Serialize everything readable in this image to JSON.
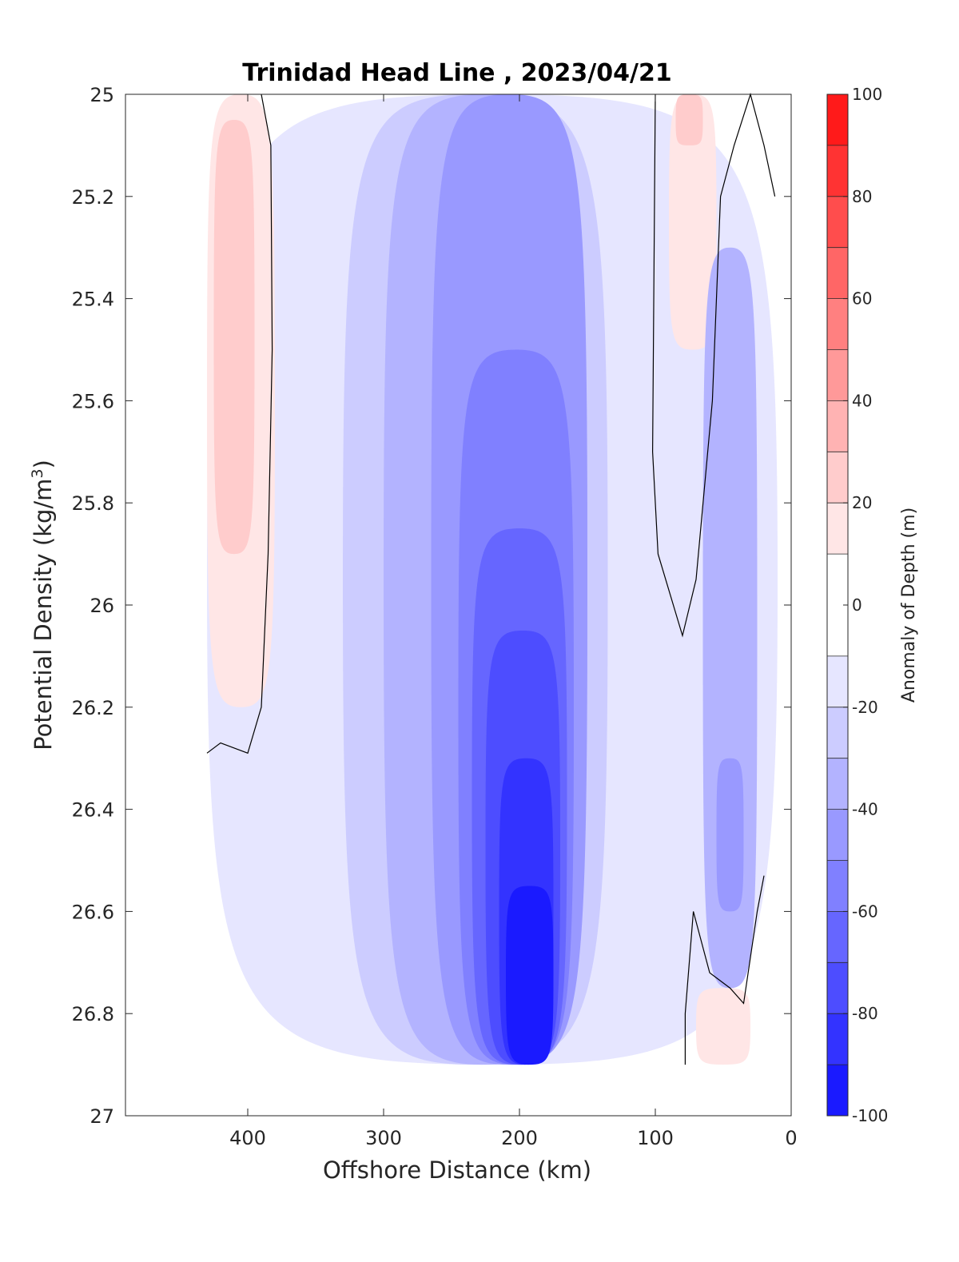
{
  "chart_data": {
    "type": "heatmap",
    "subtype": "filled-contour",
    "title": "Trinidad Head Line , 2023/04/21",
    "xlabel": "Offshore Distance (km)",
    "ylabel_main": "Potential Density (kg/m",
    "ylabel_sup": "3",
    "ylabel_close": ")",
    "x_axis": {
      "reversed": true,
      "lim": [
        0,
        490
      ],
      "ticks": [
        400,
        300,
        200,
        100,
        0
      ]
    },
    "y_axis": {
      "reversed": true,
      "lim": [
        25,
        27
      ],
      "ticks": [
        "25",
        "25.2",
        "25.4",
        "25.6",
        "25.8",
        "26",
        "26.2",
        "26.4",
        "26.6",
        "26.8",
        "27"
      ]
    },
    "colorbar": {
      "label": "Anomaly of Depth (m)",
      "lim": [
        -100,
        100
      ],
      "ticks": [
        "100",
        "80",
        "60",
        "40",
        "20",
        "0",
        "-20",
        "-40",
        "-60",
        "-80",
        "-100"
      ],
      "levels": [
        -100,
        -90,
        -80,
        -70,
        -60,
        -50,
        -40,
        -30,
        -20,
        -10,
        10,
        20,
        30,
        40,
        50,
        60,
        70,
        80,
        90,
        100
      ],
      "colors": [
        "#0000ff",
        "#1a1aff",
        "#3333ff",
        "#4d4dff",
        "#6666ff",
        "#8080ff",
        "#9999ff",
        "#b3b3ff",
        "#ccccff",
        "#e6e6ff",
        "#ffffff",
        "#ffe6e6",
        "#ffcccc",
        "#ffb3b3",
        "#ff9999",
        "#ff8080",
        "#ff6666",
        "#ff4d4d",
        "#ff3333",
        "#ff1a1a",
        "#ff0000"
      ]
    },
    "data_extent": {
      "x": [
        20,
        430
      ],
      "y": [
        25,
        26.9
      ]
    },
    "zero_contour": "black line",
    "grid": false,
    "legend": "colorbar right",
    "regions": [
      {
        "name": "inshore-wide",
        "x": [
          10,
          430
        ],
        "y": [
          25,
          26.9
        ],
        "value": -10
      },
      {
        "name": "band-1",
        "x": [
          135,
          330
        ],
        "y": [
          25,
          26.9
        ],
        "value": -20
      },
      {
        "name": "band-2",
        "x": [
          150,
          300
        ],
        "y": [
          25,
          26.9
        ],
        "value": -30
      },
      {
        "name": "band-3",
        "x": [
          150,
          265
        ],
        "y": [
          25,
          26.9
        ],
        "value": -40
      },
      {
        "name": "band-4",
        "x": [
          160,
          245
        ],
        "y": [
          25.5,
          26.9
        ],
        "value": -50
      },
      {
        "name": "band-5",
        "x": [
          165,
          235
        ],
        "y": [
          25.85,
          26.9
        ],
        "value": -60
      },
      {
        "name": "band-6",
        "x": [
          170,
          225
        ],
        "y": [
          26.05,
          26.9
        ],
        "value": -70
      },
      {
        "name": "band-7",
        "x": [
          175,
          215
        ],
        "y": [
          26.3,
          26.9
        ],
        "value": -80
      },
      {
        "name": "core",
        "x": [
          175,
          210
        ],
        "y": [
          26.55,
          26.9
        ],
        "value": -90
      },
      {
        "name": "offshore-positive",
        "x": [
          380,
          430
        ],
        "y": [
          25,
          26.2
        ],
        "value": 20
      },
      {
        "name": "offshore-positive-core",
        "x": [
          395,
          425
        ],
        "y": [
          25.05,
          25.9
        ],
        "value": 30
      },
      {
        "name": "coastal-positive",
        "x": [
          55,
          90
        ],
        "y": [
          25,
          25.5
        ],
        "value": 20
      },
      {
        "name": "coastal-positive-core",
        "x": [
          65,
          85
        ],
        "y": [
          25,
          25.1
        ],
        "value": 30
      },
      {
        "name": "deep-coastal-positive",
        "x": [
          30,
          70
        ],
        "y": [
          26.75,
          26.9
        ],
        "value": 20
      },
      {
        "name": "inshore-negative",
        "x": [
          25,
          65
        ],
        "y": [
          25.3,
          26.75
        ],
        "value": -30
      },
      {
        "name": "inshore-negative-core",
        "x": [
          35,
          55
        ],
        "y": [
          26.3,
          26.6
        ],
        "value": -40
      }
    ]
  }
}
